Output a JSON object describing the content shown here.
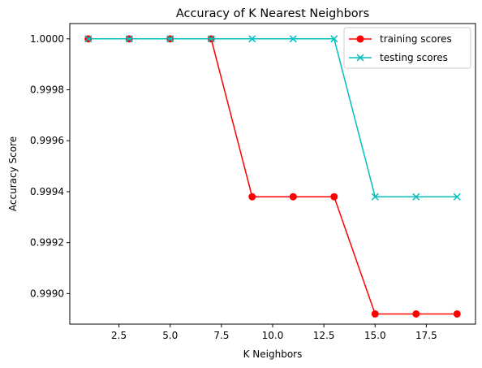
{
  "chart_data": {
    "type": "line",
    "title": "Accuracy of K Nearest Neighbors",
    "xlabel": "K Neighbors",
    "ylabel": "Accuracy Score",
    "x": [
      1,
      3,
      5,
      7,
      9,
      11,
      13,
      15,
      17,
      19
    ],
    "xlim": [
      0.1,
      19.9
    ],
    "ylim": [
      0.99888,
      1.00006
    ],
    "xticks": [
      2.5,
      5.0,
      7.5,
      10.0,
      12.5,
      15.0,
      17.5
    ],
    "xtick_labels": [
      "2.5",
      "5.0",
      "7.5",
      "10.0",
      "12.5",
      "15.0",
      "17.5"
    ],
    "yticks": [
      0.999,
      0.9992,
      0.9994,
      0.9996,
      0.9998,
      1.0
    ],
    "ytick_labels": [
      "0.9990",
      "0.9992",
      "0.9994",
      "0.9996",
      "0.9998",
      "1.0000"
    ],
    "grid": false,
    "legend_position": "top-right",
    "series": [
      {
        "name": "training scores",
        "color": "#ff0000",
        "marker": "circle",
        "values": [
          1.0,
          1.0,
          1.0,
          1.0,
          0.99938,
          0.99938,
          0.99938,
          0.99892,
          0.99892,
          0.99892
        ]
      },
      {
        "name": "testing scores",
        "color": "#00bfbf",
        "marker": "x",
        "values": [
          1.0,
          1.0,
          1.0,
          1.0,
          1.0,
          1.0,
          1.0,
          0.99938,
          0.99938,
          0.99938
        ]
      }
    ]
  }
}
